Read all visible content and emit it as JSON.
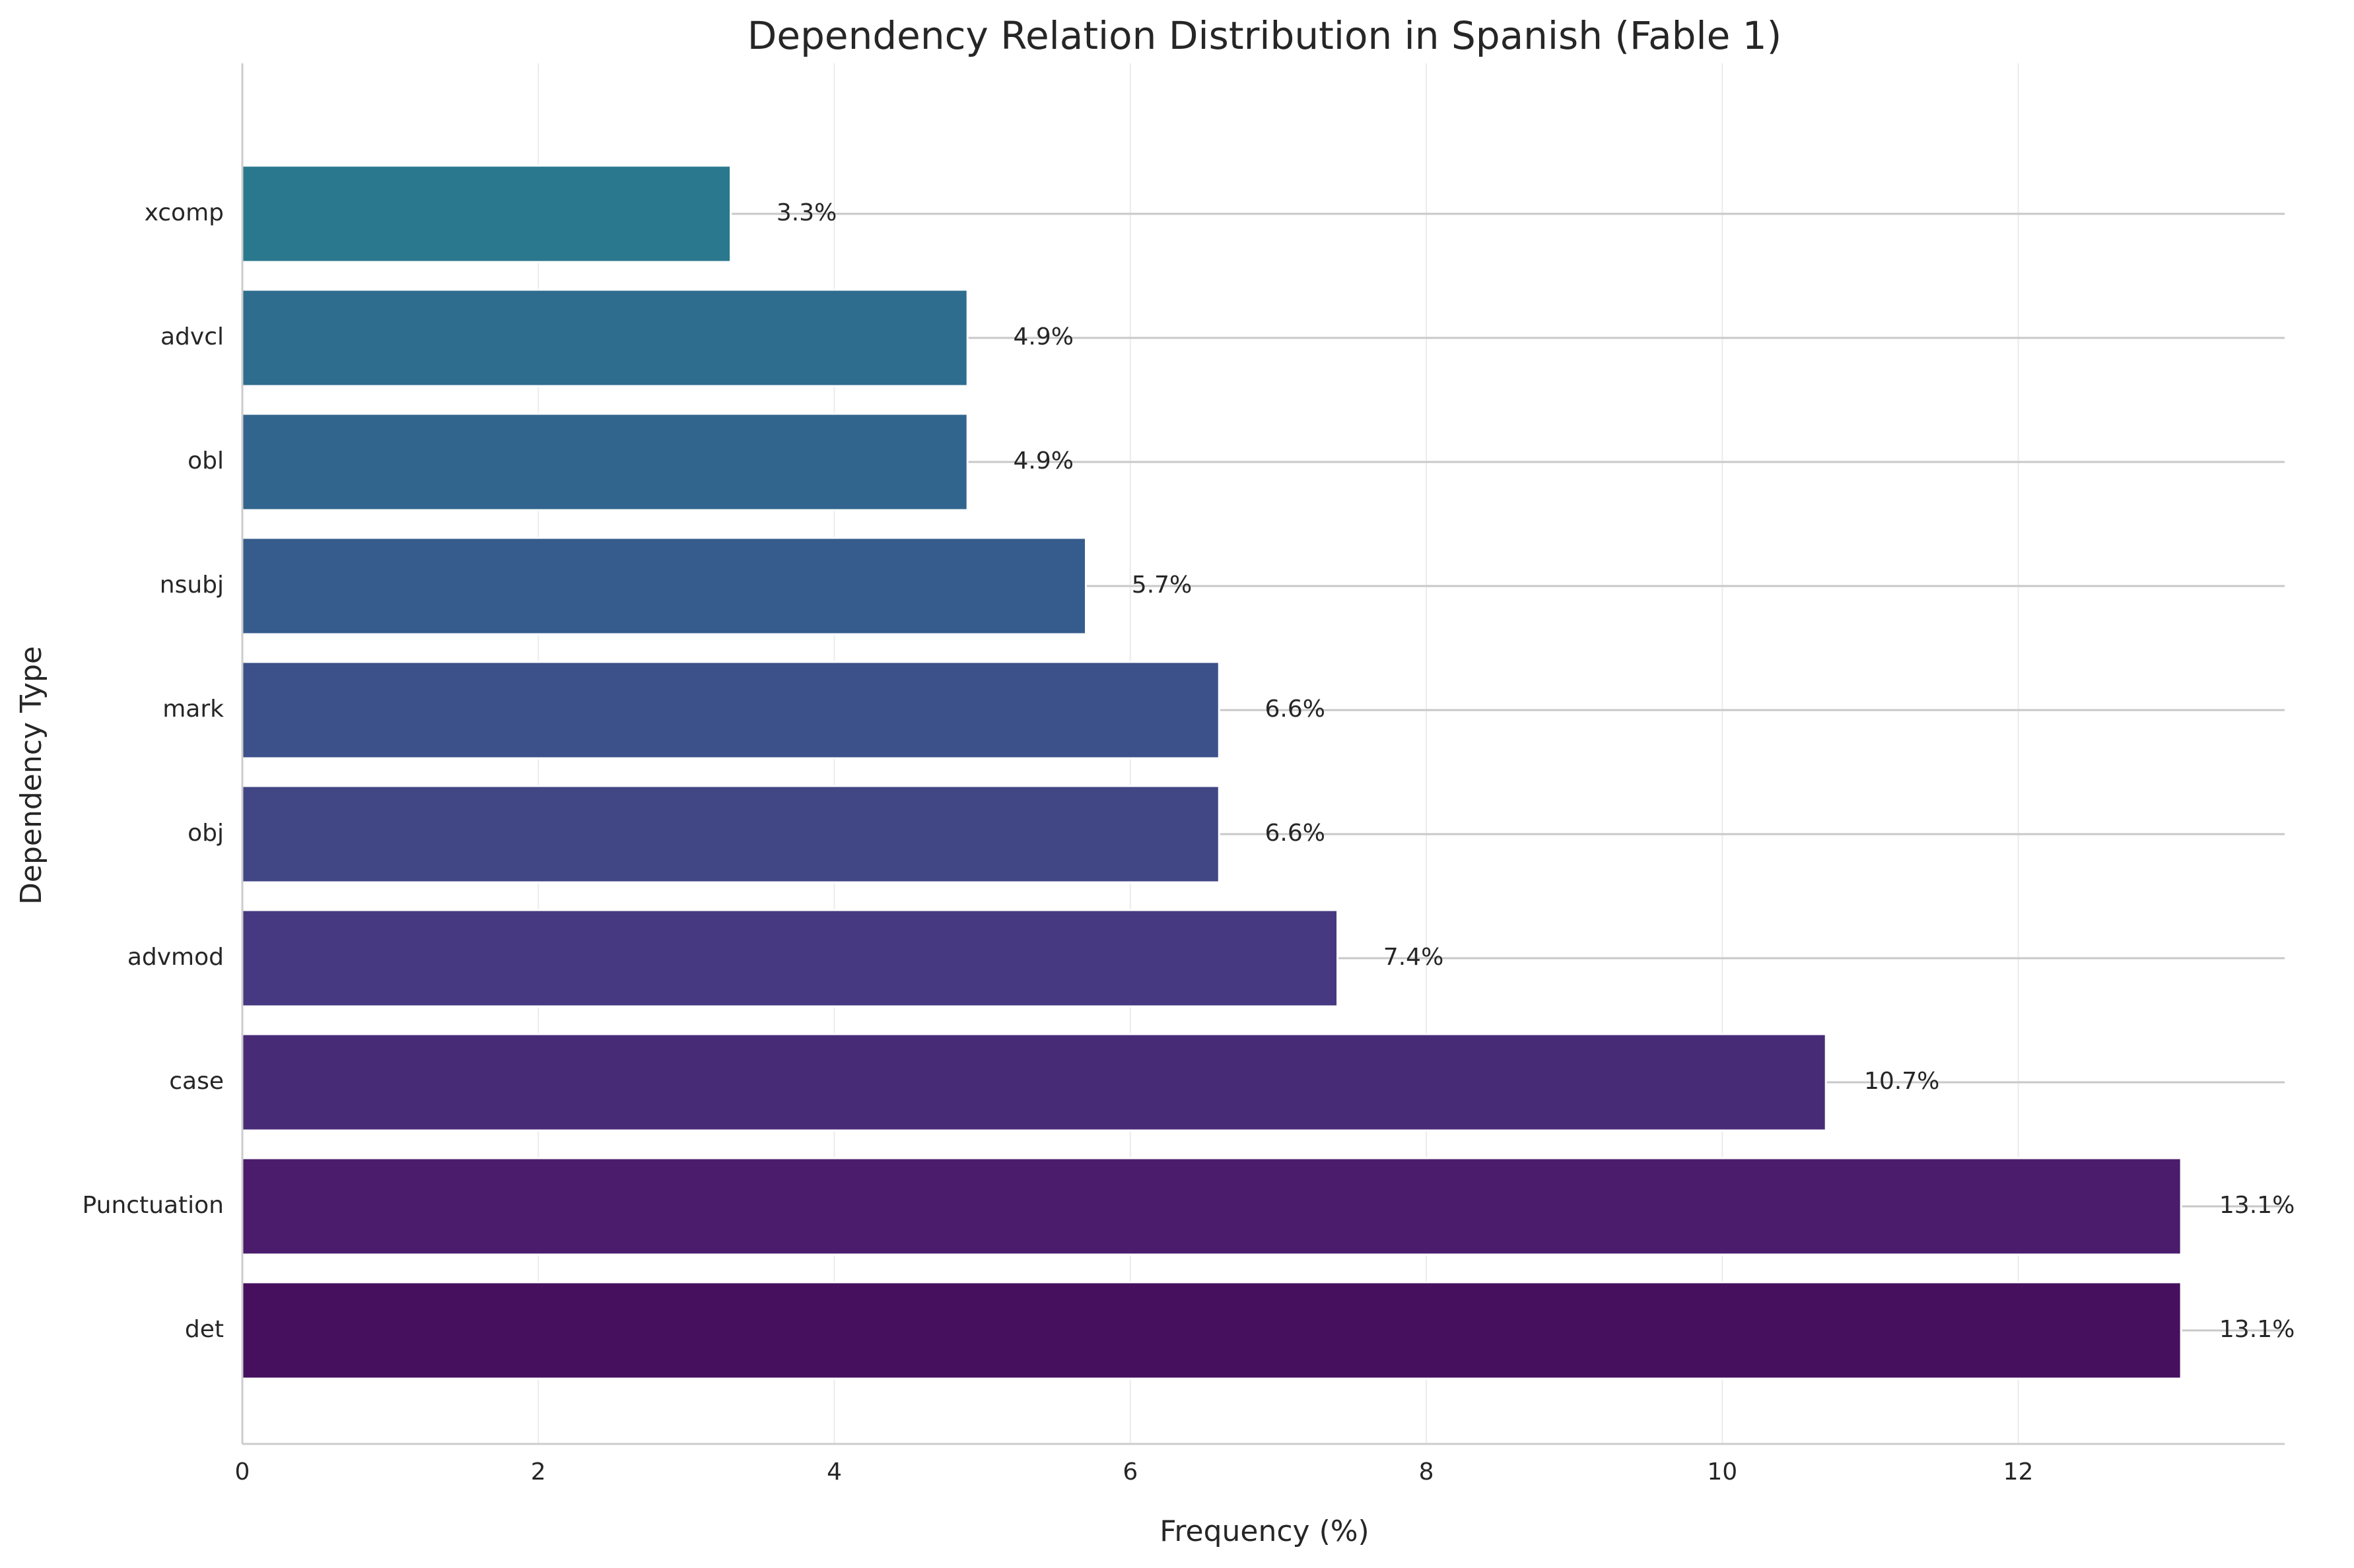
{
  "chart_data": {
    "type": "bar",
    "orientation": "horizontal",
    "title": "Dependency Relation Distribution in Spanish (Fable 1)",
    "xlabel": "Frequency (%)",
    "ylabel": "Dependency Type",
    "xlim": [
      0,
      13.8
    ],
    "xticks": [
      0,
      2,
      4,
      6,
      8,
      10,
      12
    ],
    "grid": "x-major",
    "categories": [
      "det",
      "Punctuation",
      "case",
      "advmod",
      "obj",
      "mark",
      "nsubj",
      "obl",
      "advcl",
      "xcomp"
    ],
    "values": [
      13.1,
      13.1,
      10.7,
      7.4,
      6.6,
      6.6,
      5.7,
      4.9,
      4.9,
      3.3
    ],
    "data_labels": [
      "13.1%",
      "13.1%",
      "10.7%",
      "7.4%",
      "6.6%",
      "6.6%",
      "5.7%",
      "4.9%",
      "4.9%",
      "3.3%"
    ],
    "colors": [
      "#46105e",
      "#4a1c6b",
      "#482b77",
      "#463981",
      "#414685",
      "#3c508a",
      "#365c8d",
      "#32658d",
      "#2e6d8e",
      "#2a788e"
    ]
  }
}
